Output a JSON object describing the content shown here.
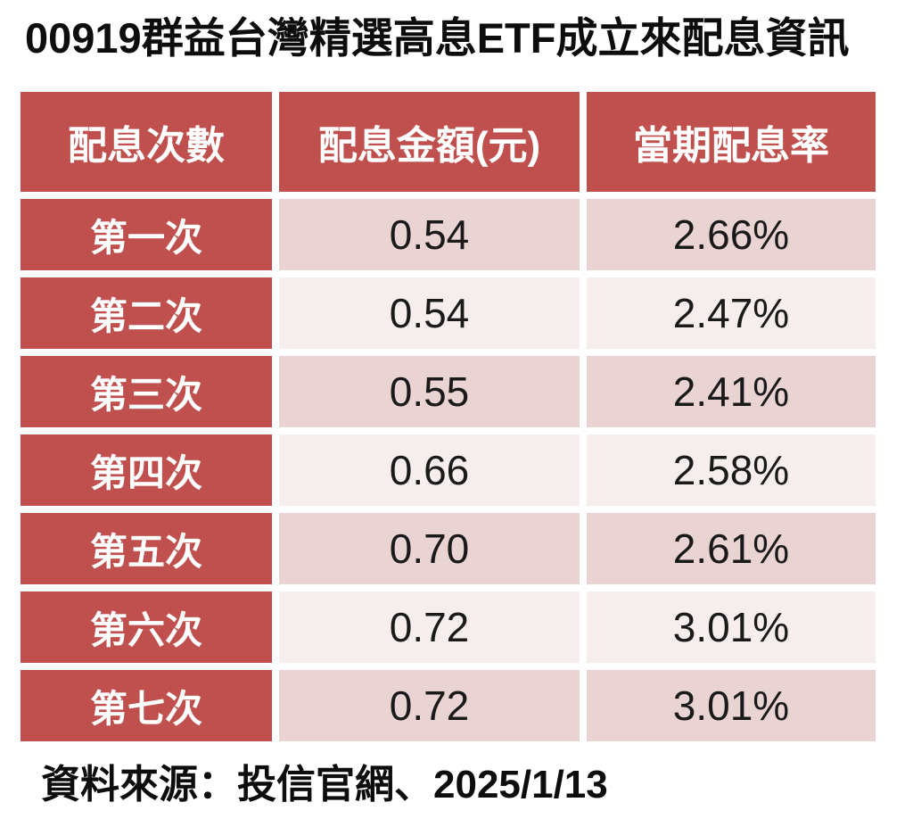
{
  "colors": {
    "header_red": "#C0504D",
    "row_dark_pink": "#EAD3D3",
    "row_light_pink": "#F6EDED",
    "header_text": "#FFFFFF",
    "text_black": "#1A1A1A"
  },
  "chart_data": {
    "type": "table",
    "title": "00919群益台灣精選高息ETF成立來配息資訊",
    "columns": [
      "配息次數",
      "配息金額(元)",
      "當期配息率"
    ],
    "rows": [
      [
        "第一次",
        "0.54",
        "2.66%"
      ],
      [
        "第二次",
        "0.54",
        "2.47%"
      ],
      [
        "第三次",
        "0.55",
        "2.41%"
      ],
      [
        "第四次",
        "0.66",
        "2.58%"
      ],
      [
        "第五次",
        "0.70",
        "2.61%"
      ],
      [
        "第六次",
        "0.72",
        "3.01%"
      ],
      [
        "第七次",
        "0.72",
        "3.01%"
      ]
    ],
    "source": "資料來源：投信官網、2025/1/13",
    "legend": "none",
    "grid": "white gaps between cells, banded rows"
  }
}
